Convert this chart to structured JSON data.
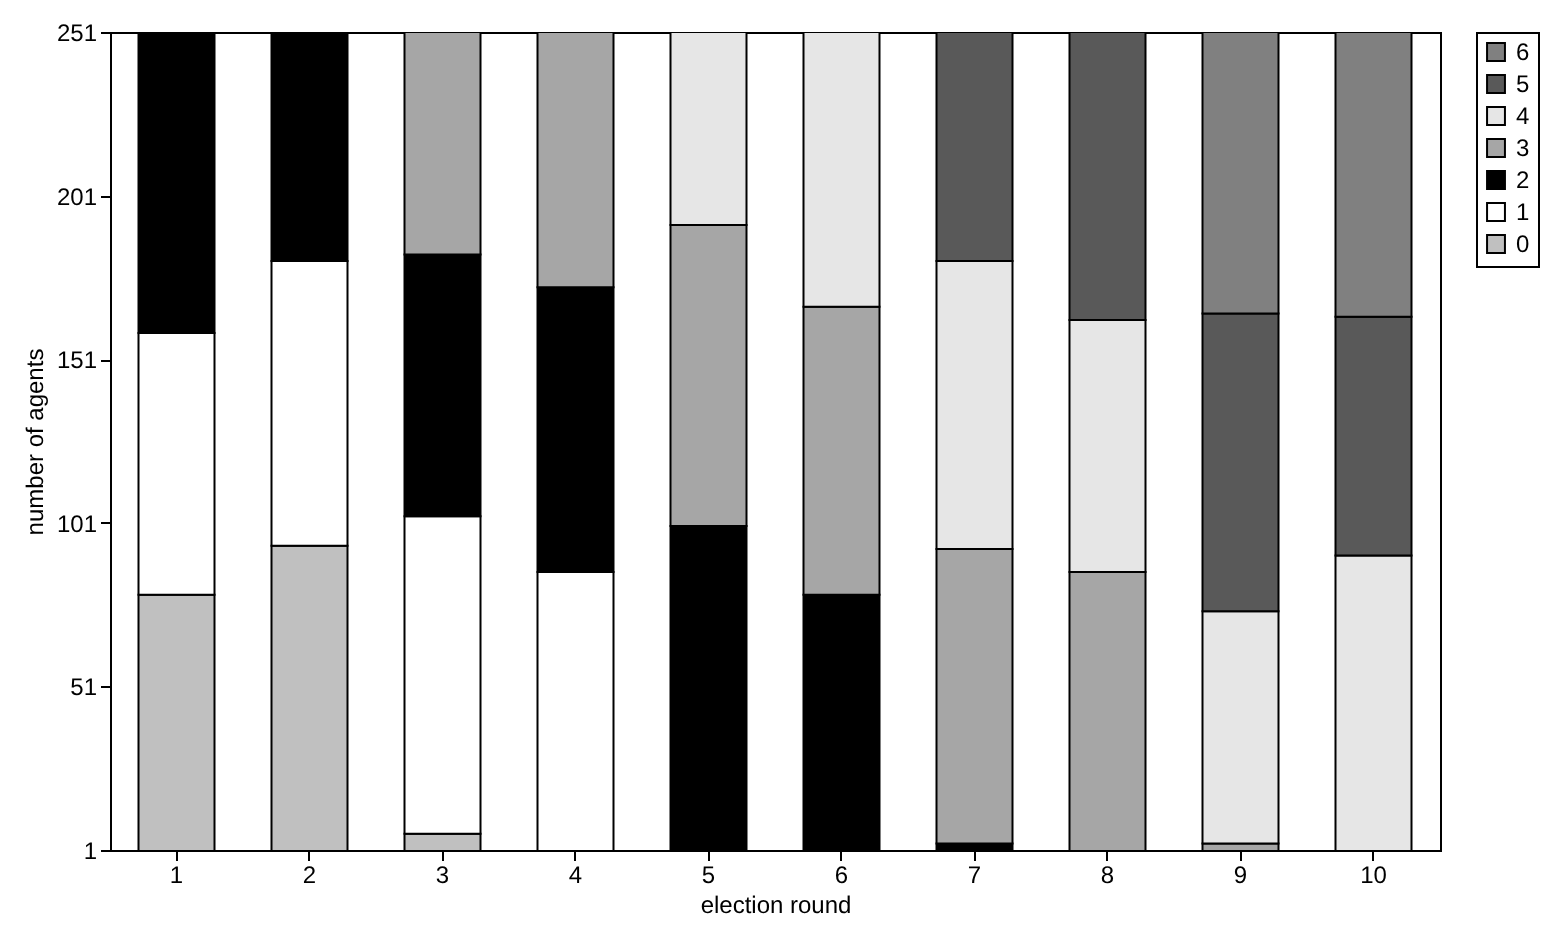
{
  "chart_data": {
    "type": "bar",
    "stacked": true,
    "xlabel": "election round",
    "ylabel": "number of agents",
    "categories": [
      "1",
      "2",
      "3",
      "4",
      "5",
      "6",
      "7",
      "8",
      "9",
      "10"
    ],
    "ylim": [
      1,
      251
    ],
    "yticks": [
      1,
      51,
      101,
      151,
      201,
      251
    ],
    "legend": "right",
    "grid": false,
    "series": [
      {
        "name": "0",
        "color": "#c0c0c0",
        "values": [
          79,
          94,
          6,
          null,
          null,
          null,
          null,
          null,
          null,
          null
        ]
      },
      {
        "name": "1",
        "color": "#ffffff",
        "values": [
          80,
          87,
          97,
          86,
          null,
          null,
          null,
          null,
          null,
          null
        ]
      },
      {
        "name": "2",
        "color": "#000000",
        "values": [
          92,
          70,
          80,
          87,
          100,
          79,
          3,
          null,
          null,
          null
        ]
      },
      {
        "name": "3",
        "color": "#a6a6a6",
        "values": [
          null,
          null,
          68,
          78,
          92,
          88,
          90,
          86,
          3,
          null
        ]
      },
      {
        "name": "4",
        "color": "#e6e6e6",
        "values": [
          null,
          null,
          null,
          null,
          59,
          84,
          88,
          77,
          71,
          91
        ]
      },
      {
        "name": "5",
        "color": "#595959",
        "values": [
          null,
          null,
          null,
          null,
          null,
          null,
          70,
          88,
          91,
          73
        ]
      },
      {
        "name": "6",
        "color": "#808080",
        "values": [
          null,
          null,
          null,
          null,
          null,
          null,
          null,
          null,
          86,
          87
        ]
      }
    ]
  }
}
